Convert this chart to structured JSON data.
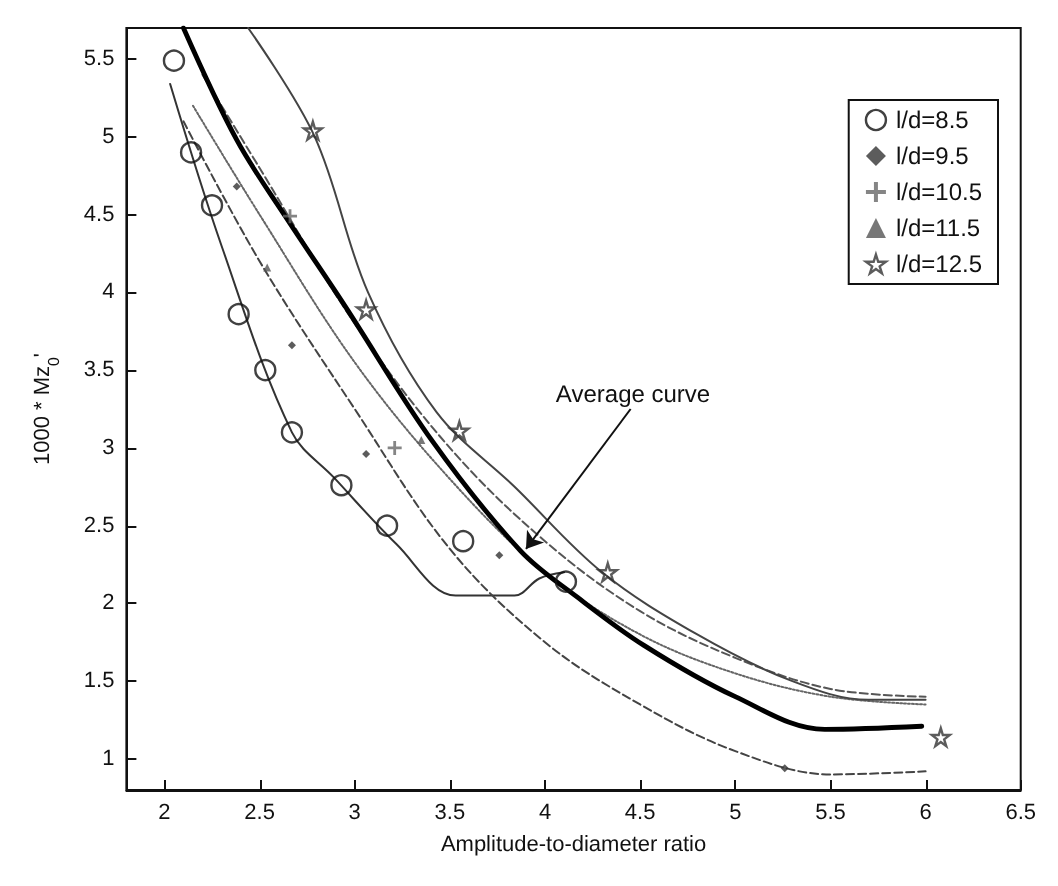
{
  "chart_data": {
    "type": "scatter",
    "xlabel": "Amplitude-to-diameter ratio",
    "ylabel": "1000 * Mz$_{0}$'",
    "xlim": [
      1.8,
      6.5
    ],
    "xticks": [
      2,
      2.5,
      3,
      3.5,
      4,
      4.5,
      5,
      5.5,
      6,
      6.5
    ],
    "ylim": [
      0.8,
      5.7
    ],
    "yticks": [
      1,
      1.5,
      2,
      2.5,
      3,
      3.5,
      4,
      4.5,
      5,
      5.5
    ],
    "grid": false,
    "legend": "top right",
    "annotations": [
      {
        "text": "Average curve",
        "x": 3.9,
        "y": 2.35
      }
    ],
    "series": [
      {
        "name": "l/d=8.5",
        "marker": "circle",
        "color": "#111111",
        "x": [
          2.05,
          2.14,
          2.25,
          2.39,
          2.53,
          2.67,
          2.93,
          3.17,
          3.57,
          4.11
        ],
        "values": [
          5.49,
          4.9,
          4.56,
          3.86,
          3.5,
          3.1,
          2.76,
          2.5,
          2.4,
          2.14
        ]
      },
      {
        "name": "l/d=9.5",
        "marker": "diamond",
        "color": "#333333",
        "x": [
          2.38,
          2.67,
          3.06,
          3.76,
          5.26
        ],
        "values": [
          4.68,
          3.66,
          2.96,
          2.31,
          0.94
        ]
      },
      {
        "name": "l/d=10.5",
        "marker": "cross",
        "color": "#666666",
        "x": [
          2.66,
          3.21
        ],
        "values": [
          4.49,
          3.0
        ]
      },
      {
        "name": "l/d=11.5",
        "marker": "triangle",
        "color": "#555555",
        "x": [
          2.54,
          3.35
        ],
        "values": [
          4.16,
          3.05
        ]
      },
      {
        "name": "l/d=12.5",
        "marker": "star",
        "color": "#333333",
        "x": [
          2.78,
          3.06,
          3.55,
          4.33,
          6.08
        ],
        "values": [
          5.04,
          3.89,
          3.11,
          2.2,
          1.14
        ]
      },
      {
        "type": "line",
        "marker": "none",
        "line_style": "solid",
        "color": "#333333",
        "x": [
          2.03,
          2.3,
          2.67,
          2.89,
          3.22,
          3.53,
          3.84,
          3.97,
          4.1
        ],
        "values": [
          5.34,
          4.3,
          3.1,
          2.81,
          2.38,
          2.05,
          2.05,
          2.16,
          2.2
        ]
      },
      {
        "type": "line",
        "marker": "none",
        "line_style": "dashed",
        "color": "#444444",
        "x": [
          2.1,
          2.5,
          3.0,
          3.5,
          4.0,
          4.5,
          5.0,
          5.5,
          6.0
        ],
        "values": [
          5.1,
          4.2,
          3.25,
          2.35,
          1.75,
          1.35,
          1.05,
          0.9,
          0.92
        ]
      },
      {
        "type": "line",
        "marker": "none",
        "line_style": "dotted",
        "color": "#666666",
        "x": [
          2.15,
          2.5,
          3.0,
          3.5,
          4.0,
          4.5,
          5.0,
          5.5,
          6.0
        ],
        "values": [
          5.2,
          4.5,
          3.55,
          2.8,
          2.2,
          1.8,
          1.55,
          1.4,
          1.35
        ]
      },
      {
        "type": "line",
        "marker": "none",
        "line_style": "dashed",
        "color": "#555555",
        "x": [
          2.2,
          2.5,
          3.0,
          3.5,
          4.0,
          4.5,
          5.0,
          5.5,
          6.0
        ],
        "values": [
          5.4,
          4.8,
          3.8,
          3.0,
          2.4,
          1.95,
          1.65,
          1.45,
          1.4
        ]
      },
      {
        "type": "line",
        "marker": "none",
        "line_style": "solid",
        "color": "#000000",
        "x": [
          2.1,
          2.38,
          2.64,
          2.95,
          3.41,
          3.87,
          4.17,
          4.52,
          5.0,
          5.47,
          5.98
        ],
        "values": [
          5.7,
          4.98,
          4.48,
          3.91,
          3.04,
          2.34,
          2.04,
          1.73,
          1.4,
          1.19,
          1.21
        ]
      },
      {
        "type": "line",
        "marker": "none",
        "line_style": "solid",
        "color": "#444444",
        "x": [
          2.44,
          2.79,
          3.07,
          3.43,
          3.84,
          4.3,
          4.8,
          5.3,
          5.7,
          6.0
        ],
        "values": [
          5.7,
          5.0,
          4.0,
          3.23,
          2.75,
          2.2,
          1.8,
          1.5,
          1.38,
          1.38
        ]
      }
    ]
  }
}
